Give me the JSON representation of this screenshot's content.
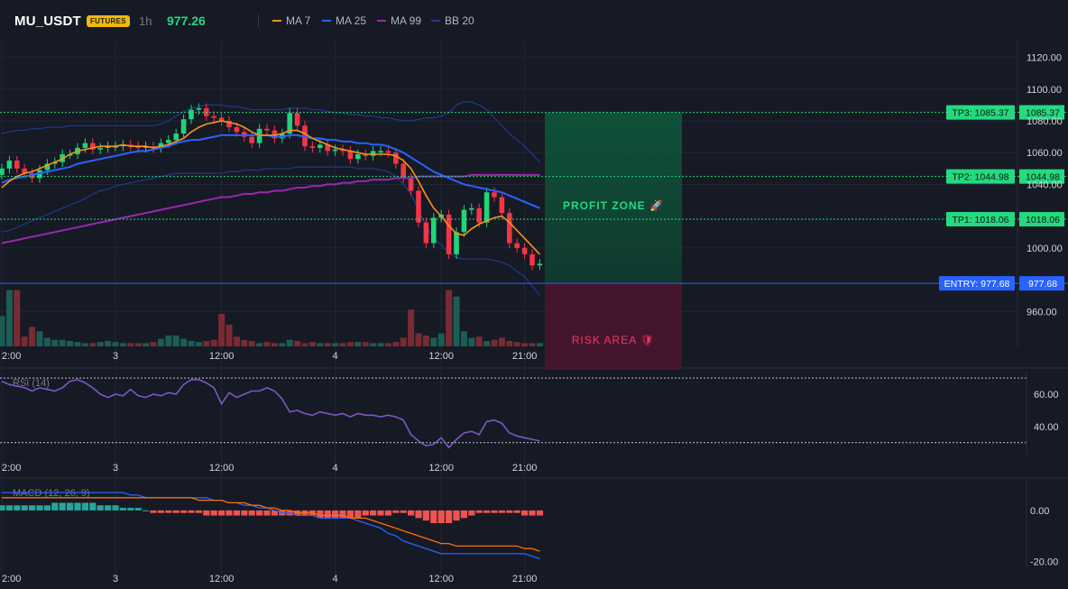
{
  "header": {
    "symbol": "MU_USDT",
    "badge": "FUTURES",
    "timeframe": "1h",
    "price": "977.26"
  },
  "indicators": [
    {
      "label": "MA 7",
      "color": "#f7931a"
    },
    {
      "label": "MA 25",
      "color": "#2962ff"
    },
    {
      "label": "MA 99",
      "color": "#9c27b0"
    },
    {
      "label": "BB 20",
      "color": "#1e3a8a"
    }
  ],
  "colors": {
    "up": "#26a69a",
    "up_bright": "#22d37a",
    "down": "#f23645",
    "grid": "#232733",
    "entry": "#2962ff",
    "tp": "#26d980"
  },
  "chart_data": [
    {
      "type": "candlestick",
      "title": "MU_USDT",
      "ylim": [
        938,
        1130
      ],
      "y_ticks": [
        "1120.00",
        "1100.00",
        "1080.00",
        "1060.00",
        "1040.00",
        "1000.00",
        "960.00"
      ],
      "x_ticks": [
        "2:00",
        "3",
        "12:00",
        "4",
        "12:00",
        "21:00"
      ],
      "close": [
        1050,
        1055,
        1050,
        1047,
        1044,
        1049,
        1053,
        1054,
        1059,
        1059,
        1063,
        1066,
        1062,
        1063,
        1064,
        1064,
        1065,
        1064,
        1063,
        1064,
        1063,
        1066,
        1068,
        1072,
        1081,
        1087,
        1088,
        1083,
        1082,
        1080,
        1076,
        1073,
        1070,
        1066,
        1075,
        1074,
        1069,
        1072,
        1085,
        1077,
        1064,
        1063,
        1065,
        1061,
        1062,
        1061,
        1056,
        1059,
        1058,
        1061,
        1061,
        1060,
        1053,
        1044,
        1036,
        1016,
        1003,
        1019,
        1021,
        996,
        1010,
        1024,
        1025,
        1016,
        1035,
        1032,
        1022,
        1003,
        1000,
        996,
        989,
        990
      ],
      "ma7": [
        1038,
        1042,
        1045,
        1047,
        1048,
        1050,
        1052,
        1054,
        1056,
        1059,
        1061,
        1062,
        1063,
        1064,
        1064,
        1064,
        1065,
        1064,
        1064,
        1064,
        1063,
        1064,
        1065,
        1067,
        1069,
        1073,
        1076,
        1078,
        1079,
        1080,
        1079,
        1078,
        1076,
        1073,
        1071,
        1071,
        1071,
        1072,
        1074,
        1074,
        1072,
        1069,
        1067,
        1065,
        1063,
        1062,
        1061,
        1060,
        1059,
        1059,
        1059,
        1059,
        1058,
        1055,
        1050,
        1042,
        1033,
        1025,
        1020,
        1014,
        1009,
        1008,
        1012,
        1015,
        1017,
        1019,
        1020,
        1016,
        1011,
        1006,
        1001,
        996
      ],
      "ma25": [
        1041,
        1043,
        1044,
        1045,
        1046,
        1047,
        1048,
        1049,
        1050,
        1051,
        1053,
        1054,
        1055,
        1056,
        1057,
        1058,
        1059,
        1060,
        1061,
        1061,
        1062,
        1063,
        1064,
        1066,
        1067,
        1068,
        1068,
        1069,
        1070,
        1071,
        1071,
        1071,
        1071,
        1071,
        1071,
        1071,
        1070,
        1070,
        1071,
        1071,
        1070,
        1069,
        1069,
        1068,
        1068,
        1067,
        1067,
        1066,
        1066,
        1065,
        1065,
        1064,
        1062,
        1060,
        1057,
        1054,
        1051,
        1048,
        1046,
        1044,
        1042,
        1040,
        1039,
        1038,
        1037,
        1036,
        1035,
        1033,
        1031,
        1029,
        1027,
        1025
      ],
      "ma99": [
        1003,
        1004,
        1005,
        1006,
        1007,
        1008,
        1009,
        1010,
        1011,
        1012,
        1013,
        1014,
        1015,
        1016,
        1017,
        1018,
        1019,
        1020,
        1021,
        1022,
        1023,
        1024,
        1025,
        1026,
        1027,
        1028,
        1029,
        1030,
        1031,
        1032,
        1032,
        1033,
        1034,
        1034,
        1035,
        1035,
        1036,
        1036,
        1037,
        1038,
        1038,
        1039,
        1039,
        1040,
        1040,
        1041,
        1041,
        1042,
        1042,
        1043,
        1043,
        1043,
        1044,
        1044,
        1044,
        1045,
        1045,
        1045,
        1045,
        1045,
        1045,
        1045,
        1046,
        1046,
        1046,
        1046,
        1046,
        1046,
        1046,
        1046,
        1046,
        1046
      ],
      "bb_upper": [
        1072,
        1073,
        1074,
        1074,
        1075,
        1075,
        1076,
        1076,
        1076,
        1077,
        1077,
        1077,
        1077,
        1077,
        1077,
        1077,
        1077,
        1077,
        1077,
        1077,
        1077,
        1078,
        1080,
        1083,
        1086,
        1088,
        1089,
        1090,
        1090,
        1090,
        1089,
        1089,
        1088,
        1087,
        1087,
        1087,
        1087,
        1087,
        1088,
        1088,
        1088,
        1087,
        1087,
        1086,
        1085,
        1085,
        1084,
        1084,
        1083,
        1083,
        1082,
        1082,
        1081,
        1080,
        1080,
        1081,
        1082,
        1082,
        1083,
        1085,
        1090,
        1092,
        1092,
        1090,
        1087,
        1082,
        1077,
        1072,
        1068,
        1064,
        1059,
        1054
      ],
      "bb_lower": [
        1010,
        1011,
        1013,
        1015,
        1017,
        1019,
        1021,
        1023,
        1025,
        1027,
        1029,
        1031,
        1034,
        1036,
        1037,
        1039,
        1040,
        1041,
        1042,
        1043,
        1044,
        1045,
        1046,
        1047,
        1047,
        1047,
        1047,
        1047,
        1047,
        1047,
        1048,
        1048,
        1049,
        1049,
        1049,
        1050,
        1050,
        1050,
        1050,
        1051,
        1051,
        1051,
        1051,
        1051,
        1051,
        1051,
        1051,
        1050,
        1050,
        1050,
        1049,
        1048,
        1045,
        1040,
        1034,
        1024,
        1014,
        1006,
        1002,
        997,
        994,
        993,
        993,
        993,
        993,
        992,
        991,
        989,
        985,
        982,
        976,
        970
      ],
      "volume": [
        28,
        52,
        52,
        9,
        18,
        14,
        8,
        6,
        6,
        5,
        4,
        3,
        3,
        4,
        5,
        4,
        3,
        3,
        3,
        3,
        4,
        7,
        10,
        10,
        7,
        5,
        4,
        5,
        6,
        30,
        20,
        9,
        6,
        5,
        3,
        4,
        3,
        3,
        6,
        5,
        3,
        4,
        3,
        3,
        3,
        3,
        4,
        4,
        4,
        3,
        3,
        3,
        4,
        8,
        34,
        12,
        10,
        8,
        12,
        52,
        46,
        14,
        8,
        9,
        5,
        6,
        8,
        5,
        4,
        3,
        3,
        3
      ],
      "levels": [
        {
          "label": "TP3: 1085.37",
          "axis_label": "1085.37",
          "price": 1085.37
        },
        {
          "label": "TP2: 1044.98",
          "axis_label": "1044.98",
          "price": 1044.98
        },
        {
          "label": "TP1: 1018.06",
          "axis_label": "1018.06",
          "price": 1018.06
        },
        {
          "label": "ENTRY: 977.68",
          "axis_label": "977.68",
          "price": 977.68
        }
      ],
      "zones": {
        "profit": "PROFIT ZONE 🚀",
        "risk": "RISK AREA 🛡"
      }
    },
    {
      "type": "line",
      "title": "RSI (14)",
      "ylim": [
        22,
        74
      ],
      "y_ticks": [
        "60.00",
        "40.00"
      ],
      "x_ticks": [
        "2:00",
        "3",
        "12:00",
        "4",
        "12:00",
        "21:00"
      ],
      "values": [
        68,
        66,
        65,
        64,
        62,
        64,
        63,
        62,
        64,
        68,
        69,
        67,
        64,
        60,
        58,
        60,
        59,
        63,
        59,
        58,
        60,
        59,
        61,
        60,
        66,
        69,
        69,
        67,
        64,
        54,
        61,
        58,
        60,
        62,
        62,
        64,
        62,
        57,
        49,
        50,
        48,
        47,
        49,
        48,
        47,
        48,
        46,
        48,
        47,
        47,
        46,
        47,
        46,
        44,
        35,
        31,
        28,
        29,
        33,
        27,
        32,
        36,
        37,
        35,
        43,
        44,
        42,
        36,
        34,
        33,
        32,
        31
      ]
    },
    {
      "type": "bar+line",
      "title": "MACD (12, 26, 9)",
      "ylim": [
        -22,
        12
      ],
      "y_ticks": [
        "0.00",
        "-20.00"
      ],
      "x_ticks": [
        "2:00",
        "3",
        "12:00",
        "4",
        "12:00",
        "21:00"
      ],
      "hist": [
        2,
        2,
        2,
        2,
        2,
        2,
        2,
        3,
        3,
        3,
        3,
        3,
        3,
        2,
        2,
        2,
        1,
        1,
        1,
        0,
        -1,
        -1,
        -1,
        -1,
        -1,
        -1,
        -1,
        -2,
        -2,
        -2,
        -2,
        -2,
        -2,
        -2,
        -2,
        -2,
        -2,
        -2,
        -2,
        -2,
        -2,
        -2,
        -3,
        -3,
        -3,
        -3,
        -3,
        -3,
        -2,
        -2,
        -2,
        -2,
        -1,
        -1,
        -2,
        -3,
        -4,
        -5,
        -5,
        -5,
        -4,
        -3,
        -2,
        -1,
        -1,
        -1,
        -1,
        -1,
        -1,
        -2,
        -2,
        -2
      ],
      "macd": [
        7,
        7,
        7,
        7,
        7,
        7,
        7,
        7,
        7,
        7,
        7,
        7,
        7,
        7,
        7,
        7,
        7,
        6,
        6,
        5,
        5,
        5,
        5,
        5,
        5,
        5,
        5,
        5,
        4,
        4,
        3,
        3,
        2,
        2,
        1,
        1,
        0,
        -1,
        -1,
        -2,
        -2,
        -2,
        -3,
        -3,
        -3,
        -3,
        -3,
        -4,
        -5,
        -6,
        -7,
        -9,
        -10,
        -12,
        -13,
        -14,
        -15,
        -16,
        -17,
        -17,
        -17,
        -17,
        -17,
        -17,
        -17,
        -17,
        -17,
        -17,
        -17,
        -17,
        -18,
        -19
      ],
      "signal": [
        5,
        5,
        5,
        5,
        5,
        5,
        5,
        5,
        5,
        5,
        5,
        5,
        5,
        5,
        5,
        5,
        5,
        5,
        5,
        5,
        5,
        5,
        5,
        5,
        5,
        5,
        4,
        4,
        4,
        4,
        3,
        3,
        3,
        2,
        2,
        1,
        1,
        0,
        0,
        -1,
        -1,
        -1,
        -2,
        -2,
        -2,
        -2,
        -3,
        -3,
        -3,
        -4,
        -5,
        -6,
        -7,
        -8,
        -9,
        -10,
        -11,
        -12,
        -13,
        -13,
        -14,
        -14,
        -14,
        -14,
        -14,
        -14,
        -14,
        -14,
        -14,
        -15,
        -15,
        -16
      ]
    }
  ]
}
